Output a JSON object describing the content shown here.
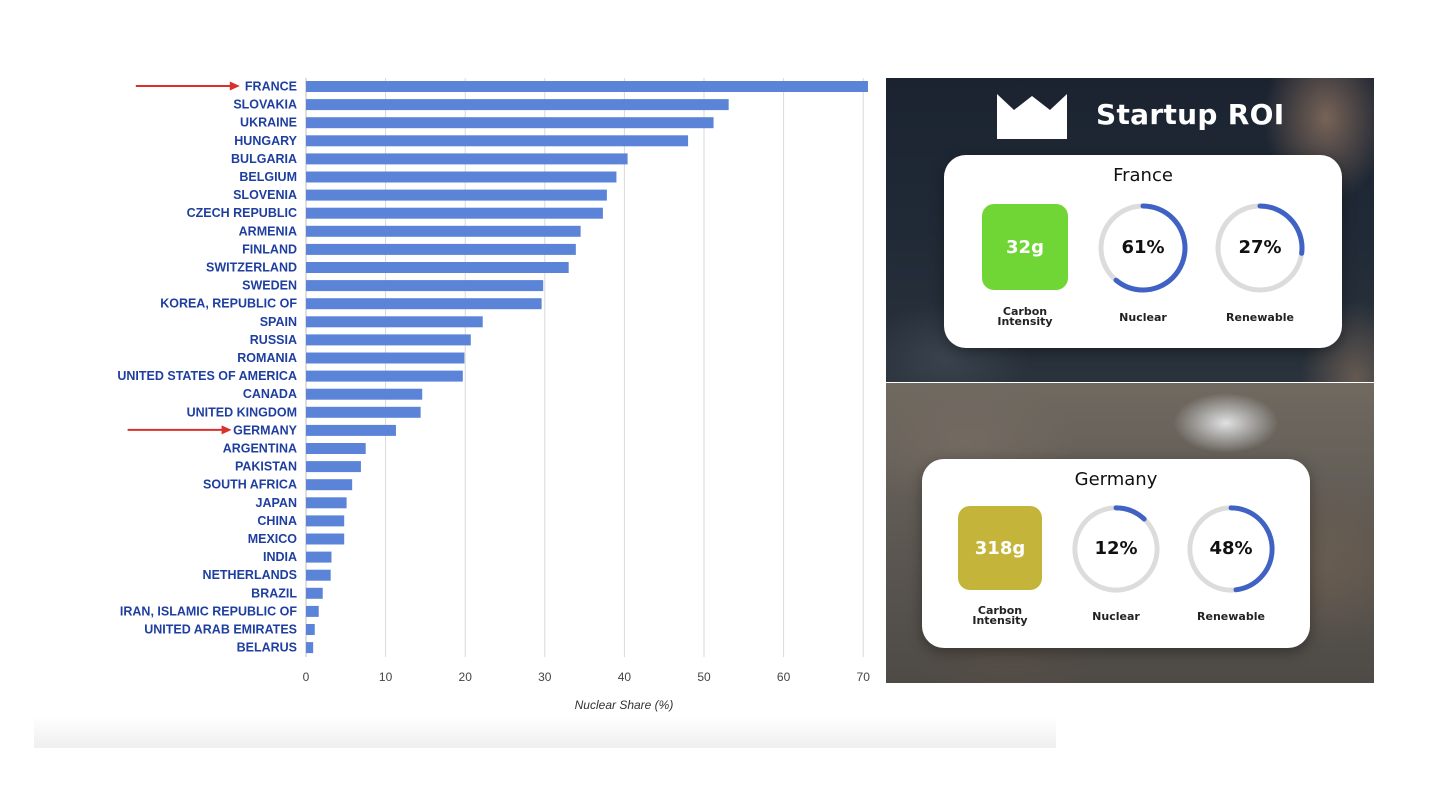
{
  "chart_data": {
    "type": "bar",
    "orientation": "horizontal",
    "categories": [
      "FRANCE",
      "SLOVAKIA",
      "UKRAINE",
      "HUNGARY",
      "BULGARIA",
      "BELGIUM",
      "SLOVENIA",
      "CZECH REPUBLIC",
      "ARMENIA",
      "FINLAND",
      "SWITZERLAND",
      "SWEDEN",
      "KOREA, REPUBLIC OF",
      "SPAIN",
      "RUSSIA",
      "ROMANIA",
      "UNITED STATES OF AMERICA",
      "CANADA",
      "UNITED KINGDOM",
      "GERMANY",
      "ARGENTINA",
      "PAKISTAN",
      "SOUTH AFRICA",
      "JAPAN",
      "CHINA",
      "MEXICO",
      "INDIA",
      "NETHERLANDS",
      "BRAZIL",
      "IRAN, ISLAMIC REPUBLIC OF",
      "UNITED ARAB EMIRATES",
      "BELARUS"
    ],
    "values": [
      70.6,
      53.1,
      51.2,
      48.0,
      40.4,
      39.0,
      37.8,
      37.3,
      34.5,
      33.9,
      33.0,
      29.8,
      29.6,
      22.2,
      20.7,
      19.9,
      19.7,
      14.6,
      14.4,
      11.3,
      7.5,
      6.9,
      5.8,
      5.1,
      4.8,
      4.8,
      3.2,
      3.1,
      2.1,
      1.6,
      1.1,
      0.9
    ],
    "highlighted": [
      "FRANCE",
      "GERMANY"
    ],
    "title": "",
    "xlabel": "Nuclear Share (%)",
    "ylabel": "",
    "xlim": [
      0,
      72
    ],
    "xticks": [
      0,
      10,
      20,
      30,
      40,
      50,
      60,
      70
    ],
    "grid": true,
    "bar_color": "#5b84d8",
    "label_color": "#1f3fa0",
    "arrow_color": "#d9302b"
  },
  "roi": {
    "title": "Startup ROI",
    "icon": "crown-icon",
    "cards": [
      {
        "country": "France",
        "carbon_value": "32g",
        "carbon_color": "#6fd635",
        "carbon_label_1": "Carbon",
        "carbon_label_2": "Intensity",
        "nuclear_value": "61%",
        "nuclear_fraction": 0.61,
        "nuclear_label": "Nuclear",
        "renewable_value": "27%",
        "renewable_fraction": 0.27,
        "renewable_label": "Renewable"
      },
      {
        "country": "Germany",
        "carbon_value": "318g",
        "carbon_color": "#c4b43a",
        "carbon_label_1": "Carbon",
        "carbon_label_2": "Intensity",
        "nuclear_value": "12%",
        "nuclear_fraction": 0.12,
        "nuclear_label": "Nuclear",
        "renewable_value": "48%",
        "renewable_fraction": 0.48,
        "renewable_label": "Renewable"
      }
    ],
    "ring_color": "#3f62c4",
    "ring_track_color": "#dcdcdc"
  }
}
